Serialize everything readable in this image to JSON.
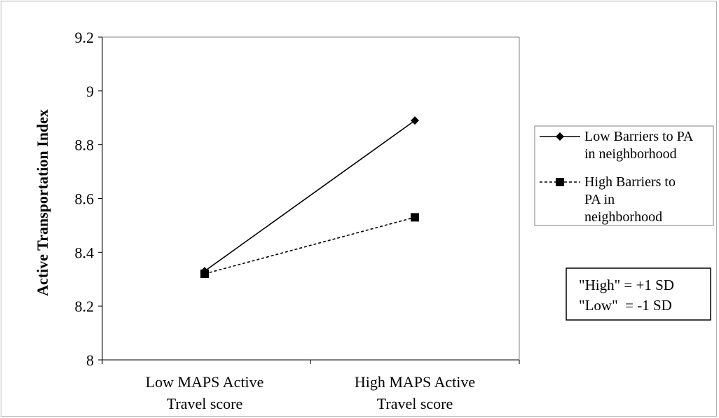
{
  "chart_data": {
    "type": "line",
    "title": "",
    "xlabel": "",
    "ylabel": "Active Transportation Index",
    "categories": [
      [
        "Low MAPS Active",
        "Travel score"
      ],
      [
        "High MAPS Active",
        "Travel score"
      ]
    ],
    "ylim": [
      8,
      9.2
    ],
    "yticks": [
      8,
      8.2,
      8.4,
      8.6,
      8.8,
      9,
      9.2
    ],
    "ytick_labels": [
      "8",
      "8.2",
      "8.4",
      "8.6",
      "8.8",
      "9",
      "9.2"
    ],
    "grid": false,
    "legend_position": "right",
    "series": [
      {
        "name_lines": [
          "Low Barriers to PA",
          "in neighborhood"
        ],
        "values": [
          8.33,
          8.89
        ],
        "marker": "diamond",
        "line_style": "solid",
        "color": "#000000"
      },
      {
        "name_lines": [
          "High Barriers to",
          "PA in",
          "neighborhood"
        ],
        "values": [
          8.32,
          8.53
        ],
        "marker": "square",
        "line_style": "dashed",
        "color": "#000000"
      }
    ],
    "annotation_lines": [
      "\"High\" = +1 SD",
      "\"Low\"  = -1 SD"
    ]
  }
}
